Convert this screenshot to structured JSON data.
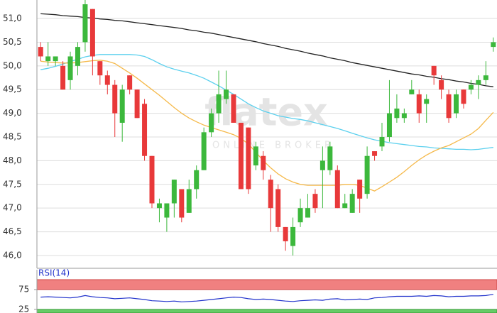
{
  "chart_data": [
    {
      "type": "candlestick",
      "watermark": {
        "logo": "flatex",
        "tagline": "ONLINE BROKER"
      },
      "ylim": [
        45.73,
        51.39
      ],
      "yticks": [
        {
          "value": 46,
          "label": "46,0"
        },
        {
          "value": 46.5,
          "label": "46,5"
        },
        {
          "value": 47,
          "label": "47,0"
        },
        {
          "value": 47.5,
          "label": "47,5"
        },
        {
          "value": 48,
          "label": "48,0"
        },
        {
          "value": 48.5,
          "label": "48,5"
        },
        {
          "value": 49,
          "label": "49,0"
        },
        {
          "value": 49.5,
          "label": "49,5"
        },
        {
          "value": 50,
          "label": "50,0"
        },
        {
          "value": 50.5,
          "label": "50,5"
        },
        {
          "value": 51,
          "label": "51,0"
        }
      ],
      "grid": true,
      "up_color": "#3cb83c",
      "down_color": "#e8393a",
      "open": [
        50.4,
        50.1,
        50.1,
        50.0,
        49.7,
        50.0,
        50.5,
        51.2,
        50.1,
        49.8,
        49.6,
        48.8,
        49.8,
        49.5,
        49.2,
        48.1,
        47.0,
        46.8,
        47.1,
        47.4,
        46.9,
        47.4,
        47.8,
        48.6,
        49.0,
        49.3,
        49.4,
        48.8,
        48.7,
        47.9,
        48.1,
        47.6,
        47.4,
        46.6,
        46.2,
        46.7,
        46.8,
        47.3,
        47.8,
        47.8,
        47.8,
        47.0,
        46.9,
        47.6,
        47.3,
        48.2,
        48.3,
        48.5,
        48.9,
        48.9,
        49.4,
        49.4,
        49.2,
        50.0,
        49.7,
        49.4,
        49.0,
        49.5,
        49.5,
        49.6,
        49.7,
        50.4
      ],
      "high": [
        50.5,
        50.5,
        50.2,
        50.1,
        50.3,
        50.5,
        51.5,
        51.2,
        50.1,
        49.9,
        49.7,
        49.6,
        49.8,
        49.5,
        49.3,
        48.1,
        47.2,
        47.1,
        47.6,
        47.4,
        47.6,
        47.9,
        48.7,
        49.1,
        49.9,
        49.9,
        49.4,
        48.8,
        48.7,
        48.4,
        48.2,
        47.7,
        47.5,
        46.6,
        46.8,
        47.2,
        47.3,
        47.4,
        48.3,
        48.4,
        47.9,
        47.3,
        47.4,
        47.6,
        48.3,
        48.2,
        48.8,
        49.7,
        49.4,
        49.1,
        49.7,
        49.5,
        49.4,
        50.0,
        49.8,
        49.5,
        49.5,
        49.5,
        49.7,
        49.8,
        50.1,
        50.6
      ],
      "low": [
        50.1,
        50.0,
        50.0,
        49.5,
        49.5,
        49.8,
        50.3,
        49.8,
        49.6,
        49.4,
        48.5,
        48.4,
        49.4,
        48.9,
        48.0,
        47.0,
        46.7,
        46.5,
        46.8,
        46.7,
        46.9,
        47.2,
        47.8,
        48.5,
        48.8,
        49.2,
        48.8,
        47.4,
        47.3,
        47.8,
        47.6,
        46.5,
        46.5,
        46.1,
        46.0,
        46.6,
        46.8,
        46.9,
        47.0,
        47.7,
        47.0,
        47.0,
        46.9,
        46.9,
        47.2,
        48.0,
        48.2,
        48.4,
        48.8,
        48.8,
        49.4,
        48.8,
        48.8,
        49.6,
        49.3,
        48.8,
        48.9,
        49.1,
        49.4,
        49.3,
        49.6,
        50.3
      ],
      "close": [
        50.2,
        50.2,
        50.2,
        49.5,
        50.2,
        50.4,
        51.3,
        50.2,
        49.8,
        49.6,
        49.0,
        49.5,
        49.5,
        48.9,
        48.1,
        47.1,
        47.1,
        47.1,
        47.6,
        46.8,
        47.4,
        47.8,
        48.6,
        49.0,
        49.4,
        49.5,
        48.8,
        47.4,
        47.4,
        48.3,
        47.8,
        47.0,
        46.6,
        46.3,
        46.6,
        47.0,
        47.0,
        47.0,
        48.0,
        48.3,
        47.0,
        47.1,
        47.3,
        47.2,
        48.1,
        48.1,
        48.5,
        49.0,
        49.1,
        49.0,
        49.5,
        49.0,
        49.3,
        49.8,
        49.5,
        48.9,
        49.4,
        49.2,
        49.6,
        49.7,
        49.8,
        50.5
      ],
      "lines": [
        {
          "color": "#222222",
          "values": [
            51.1,
            51.09,
            51.08,
            51.06,
            51.05,
            51.04,
            51.02,
            51.01,
            50.99,
            50.98,
            50.96,
            50.95,
            50.93,
            50.91,
            50.89,
            50.87,
            50.85,
            50.83,
            50.81,
            50.79,
            50.76,
            50.74,
            50.71,
            50.69,
            50.66,
            50.63,
            50.6,
            50.57,
            50.54,
            50.51,
            50.47,
            50.44,
            50.41,
            50.37,
            50.34,
            50.31,
            50.27,
            50.24,
            50.21,
            50.17,
            50.14,
            50.11,
            50.07,
            50.04,
            50.01,
            49.98,
            49.95,
            49.92,
            49.89,
            49.86,
            49.83,
            49.81,
            49.78,
            49.76,
            49.73,
            49.71,
            49.68,
            49.66,
            49.63,
            49.61,
            49.58,
            49.56
          ]
        },
        {
          "color": "#5bd0ee",
          "values": [
            49.92,
            49.95,
            49.99,
            50.04,
            50.09,
            50.14,
            50.19,
            50.22,
            50.24,
            50.24,
            50.24,
            50.24,
            50.24,
            50.23,
            50.2,
            50.13,
            50.05,
            49.98,
            49.93,
            49.89,
            49.85,
            49.8,
            49.74,
            49.66,
            49.58,
            49.49,
            49.4,
            49.3,
            49.2,
            49.12,
            49.05,
            49.0,
            48.95,
            48.92,
            48.89,
            48.87,
            48.84,
            48.8,
            48.76,
            48.72,
            48.68,
            48.63,
            48.58,
            48.53,
            48.48,
            48.44,
            48.41,
            48.38,
            48.36,
            48.34,
            48.32,
            48.3,
            48.29,
            48.27,
            48.26,
            48.25,
            48.24,
            48.24,
            48.23,
            48.24,
            48.26,
            48.28
          ]
        },
        {
          "color": "#f5b94a",
          "values": [
            50.1,
            50.08,
            50.07,
            50.06,
            50.06,
            50.07,
            50.09,
            50.11,
            50.12,
            50.1,
            50.05,
            49.95,
            49.85,
            49.74,
            49.62,
            49.5,
            49.38,
            49.25,
            49.12,
            49.0,
            48.9,
            48.82,
            48.75,
            48.7,
            48.65,
            48.6,
            48.55,
            48.47,
            48.35,
            48.18,
            48.0,
            47.85,
            47.72,
            47.62,
            47.55,
            47.5,
            47.48,
            47.48,
            47.48,
            47.48,
            47.48,
            47.5,
            47.5,
            47.48,
            47.42,
            47.36,
            47.45,
            47.55,
            47.65,
            47.77,
            47.9,
            48.02,
            48.12,
            48.2,
            48.27,
            48.32,
            48.4,
            48.48,
            48.56,
            48.68,
            48.85,
            49.02
          ]
        }
      ]
    },
    {
      "type": "line",
      "title": "RSI(14)",
      "ylim": [
        16,
        100
      ],
      "yticks": [
        25,
        75
      ],
      "color": "#2233cc",
      "overbought_color": "#f08080",
      "oversold_color": "#66cc66",
      "values": [
        56,
        57,
        56,
        55,
        54,
        56,
        60,
        57,
        55,
        54,
        52,
        53,
        54,
        52,
        50,
        47,
        46,
        45,
        46,
        44,
        45,
        46,
        48,
        50,
        52,
        54,
        56,
        55,
        52,
        50,
        51,
        50,
        48,
        46,
        45,
        47,
        48,
        49,
        48,
        51,
        52,
        49,
        50,
        51,
        50,
        54,
        55,
        57,
        58,
        58,
        58,
        59,
        58,
        60,
        59,
        57,
        58,
        58,
        59,
        59,
        60,
        63
      ]
    }
  ]
}
